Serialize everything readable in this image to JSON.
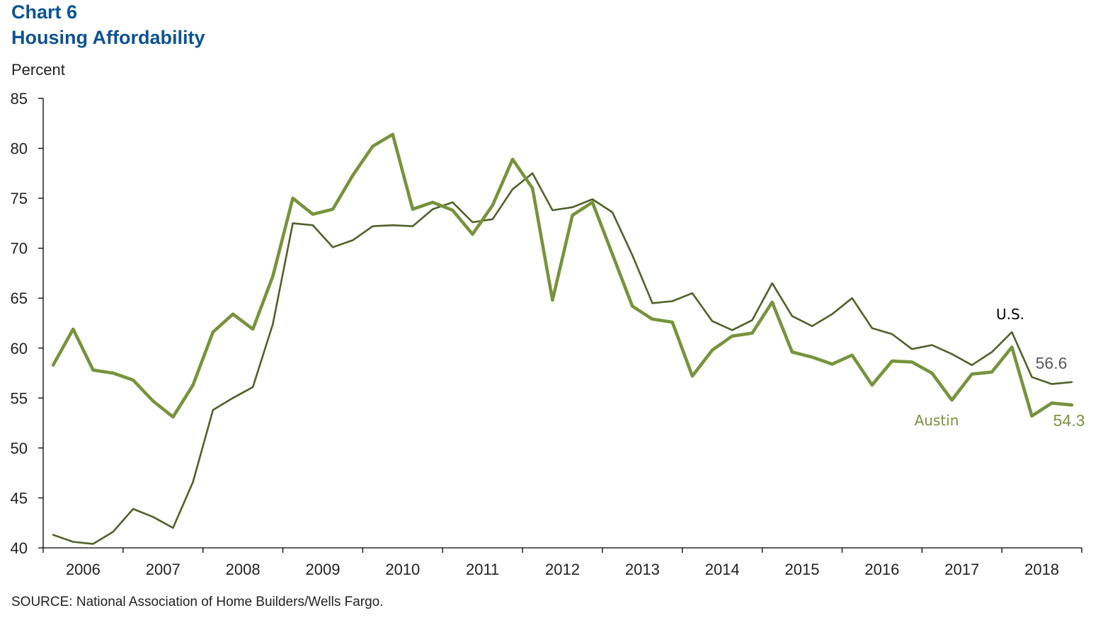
{
  "header": {
    "chart_number": "Chart 6",
    "title": "Housing Affordability",
    "ylabel": "Percent"
  },
  "source": "SOURCE:  National Association of Home  Builders/Wells Fargo.",
  "colors": {
    "us": "#4f6228",
    "austin": "#77933c",
    "axis": "#000000"
  },
  "chart_data": {
    "type": "line",
    "title": "Housing Affordability",
    "xlabel": "",
    "ylabel": "Percent",
    "ylim": [
      40,
      85
    ],
    "yticks": [
      40,
      45,
      50,
      55,
      60,
      65,
      70,
      75,
      80,
      85
    ],
    "year_labels": [
      "2006",
      "2007",
      "2008",
      "2009",
      "2010",
      "2011",
      "2012",
      "2013",
      "2014",
      "2015",
      "2016",
      "2017",
      "2018"
    ],
    "quarters_per_year": 4,
    "x_domain_quarters": [
      0,
      52
    ],
    "series": [
      {
        "name": "U.S.",
        "label": "U.S.",
        "end_value_label": "56.6",
        "values": [
          41.3,
          40.6,
          40.4,
          41.6,
          43.9,
          43.1,
          42.0,
          46.6,
          53.8,
          55.0,
          56.1,
          62.4,
          72.5,
          72.3,
          70.1,
          70.8,
          72.2,
          72.3,
          72.2,
          73.9,
          74.6,
          72.6,
          72.9,
          75.9,
          77.5,
          73.8,
          74.1,
          74.9,
          73.6,
          69.3,
          64.5,
          64.7,
          65.5,
          62.7,
          61.8,
          62.8,
          66.5,
          63.2,
          62.2,
          63.4,
          65.0,
          62.0,
          61.4,
          59.9,
          60.3,
          59.4,
          58.3,
          59.6,
          61.6,
          57.1,
          56.4,
          56.6
        ]
      },
      {
        "name": "Austin",
        "label": "Austin",
        "end_value_label": "54.3",
        "values": [
          58.3,
          61.9,
          57.8,
          57.5,
          56.8,
          54.7,
          53.1,
          56.3,
          61.6,
          63.4,
          61.9,
          67.2,
          75.0,
          73.4,
          73.9,
          77.3,
          80.2,
          81.4,
          73.9,
          74.6,
          73.8,
          71.4,
          74.3,
          78.9,
          76.0,
          64.8,
          73.3,
          74.6,
          69.4,
          64.2,
          62.9,
          62.6,
          57.2,
          59.8,
          61.2,
          61.5,
          64.6,
          59.6,
          59.1,
          58.4,
          59.3,
          56.3,
          58.7,
          58.6,
          57.5,
          54.8,
          57.4,
          57.6,
          60.1,
          53.2,
          54.5,
          54.3
        ]
      }
    ]
  }
}
